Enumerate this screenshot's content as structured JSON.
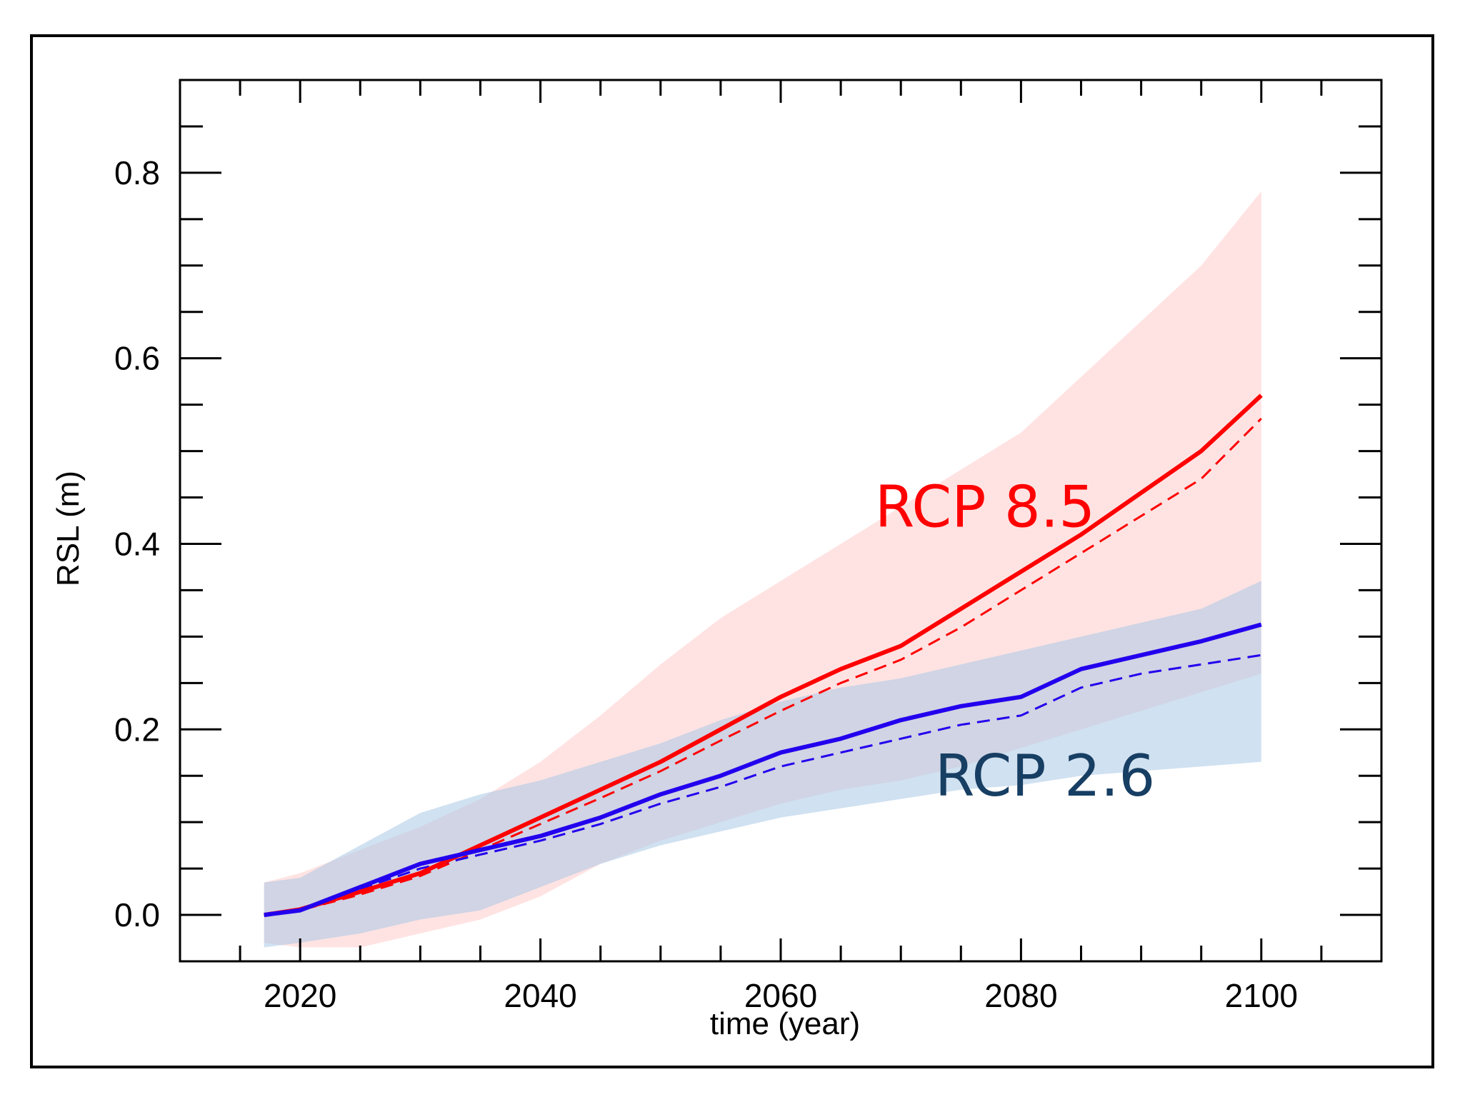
{
  "chart_data": {
    "type": "line",
    "title": "",
    "xlabel": "time (year)",
    "ylabel": "RSL (m)",
    "xlim": [
      2010,
      2110
    ],
    "ylim": [
      -0.05,
      0.9
    ],
    "x_ticks": [
      2020,
      2040,
      2060,
      2080,
      2100
    ],
    "x_tick_labels": [
      "2020",
      "2040",
      "2060",
      "2080",
      "2100"
    ],
    "y_ticks": [
      0.0,
      0.2,
      0.4,
      0.6,
      0.8
    ],
    "y_tick_labels": [
      "0.0",
      "0.2",
      "0.4",
      "0.6",
      "0.8"
    ],
    "x_minor_step": 5,
    "y_minor_step": 0.05,
    "grid": false,
    "x": [
      2017,
      2020,
      2025,
      2030,
      2035,
      2040,
      2045,
      2050,
      2055,
      2060,
      2065,
      2070,
      2075,
      2080,
      2085,
      2090,
      2095,
      2100
    ],
    "series": [
      {
        "name": "RCP 8.5",
        "color": "#ff0000",
        "band_color": "#ffcccc",
        "median": [
          0.0,
          0.006,
          0.025,
          0.045,
          0.075,
          0.105,
          0.135,
          0.165,
          0.2,
          0.235,
          0.265,
          0.29,
          0.33,
          0.37,
          0.41,
          0.455,
          0.5,
          0.56
        ],
        "mean_dashed": [
          0.0,
          0.005,
          0.022,
          0.042,
          0.07,
          0.098,
          0.126,
          0.155,
          0.188,
          0.22,
          0.25,
          0.275,
          0.31,
          0.35,
          0.39,
          0.43,
          0.47,
          0.535
        ],
        "lower": [
          -0.03,
          -0.035,
          -0.035,
          -0.02,
          -0.005,
          0.02,
          0.055,
          0.08,
          0.1,
          0.12,
          0.135,
          0.145,
          0.16,
          0.18,
          0.2,
          0.22,
          0.24,
          0.26
        ],
        "upper": [
          0.035,
          0.045,
          0.07,
          0.095,
          0.125,
          0.165,
          0.215,
          0.27,
          0.32,
          0.36,
          0.4,
          0.44,
          0.48,
          0.52,
          0.58,
          0.64,
          0.7,
          0.78
        ]
      },
      {
        "name": "RCP 2.6",
        "color": "#2200ee",
        "band_color": "#a9c8e6",
        "median": [
          0.0,
          0.005,
          0.03,
          0.055,
          0.07,
          0.085,
          0.105,
          0.13,
          0.15,
          0.175,
          0.19,
          0.21,
          0.225,
          0.235,
          0.265,
          0.28,
          0.295,
          0.313
        ],
        "mean_dashed": [
          0.0,
          0.004,
          0.028,
          0.05,
          0.065,
          0.08,
          0.098,
          0.12,
          0.138,
          0.16,
          0.175,
          0.19,
          0.205,
          0.215,
          0.245,
          0.26,
          0.27,
          0.28
        ],
        "lower": [
          -0.035,
          -0.03,
          -0.02,
          -0.005,
          0.005,
          0.03,
          0.055,
          0.075,
          0.09,
          0.105,
          0.115,
          0.125,
          0.135,
          0.14,
          0.15,
          0.155,
          0.16,
          0.165
        ],
        "upper": [
          0.035,
          0.04,
          0.075,
          0.11,
          0.13,
          0.145,
          0.165,
          0.185,
          0.21,
          0.23,
          0.245,
          0.255,
          0.27,
          0.285,
          0.3,
          0.315,
          0.33,
          0.36
        ]
      }
    ],
    "annotations": [
      {
        "text": "RCP 8.5",
        "x": 2077,
        "y": 0.44,
        "color": "#ff0000"
      },
      {
        "text": "RCP 2.6",
        "x": 2082,
        "y": 0.15,
        "color": "#173e63"
      }
    ]
  }
}
